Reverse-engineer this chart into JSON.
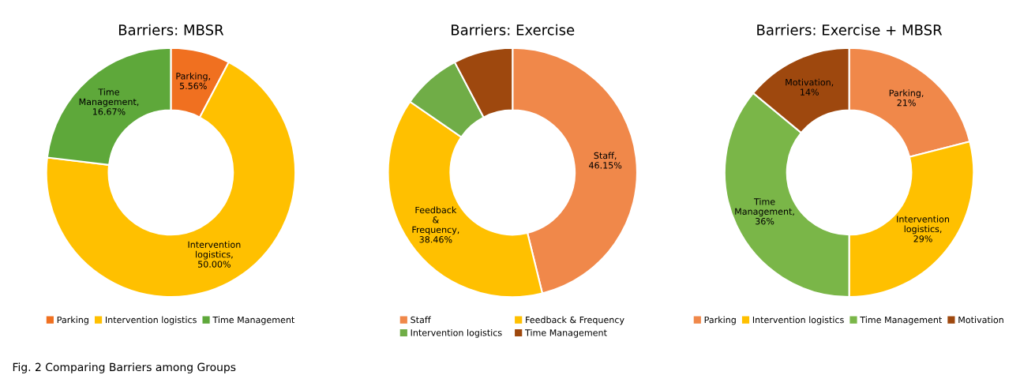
{
  "chart_data": [
    {
      "type": "donut",
      "title": "Barriers: MBSR",
      "categories": [
        "Parking",
        "Intervention logistics",
        "Time Management"
      ],
      "values": [
        5.56,
        50.0,
        16.67
      ],
      "colors": [
        "#f07020",
        "#ffc000",
        "#5ea83a"
      ],
      "value_labels": [
        "Parking, 5.56%",
        "Intervention logistics, 50.00%",
        "Time Management, 16.67%"
      ],
      "legend": "bottom",
      "annotations": [
        "Fig. 2 Comparing Barriers among Groups"
      ]
    },
    {
      "type": "donut",
      "title": "Barriers: Exercise",
      "categories": [
        "Staff",
        "Feedback & Frequency",
        "Intervention logistics",
        "Time Management"
      ],
      "values": [
        46.15,
        38.46,
        7.69,
        7.69
      ],
      "colors": [
        "#f0884a",
        "#ffc000",
        "#70ad47",
        "#9e480e"
      ],
      "value_labels": [
        "Staff, 46.15%",
        "Feedback & Frequency, 38.46%",
        null,
        null
      ],
      "legend": "bottom"
    },
    {
      "type": "donut",
      "title": "Barriers: Exercise + MBSR",
      "categories": [
        "Parking",
        "Intervention logistics",
        "Time Management",
        "Motivation"
      ],
      "values": [
        21,
        29,
        36,
        14
      ],
      "colors": [
        "#f0884a",
        "#ffc000",
        "#7ab648",
        "#9e480e"
      ],
      "value_labels": [
        "Parking, 21%",
        "Intervention logistics, 29%",
        "Time Management, 36%",
        "Motivation, 14%"
      ],
      "legend": "bottom"
    }
  ]
}
